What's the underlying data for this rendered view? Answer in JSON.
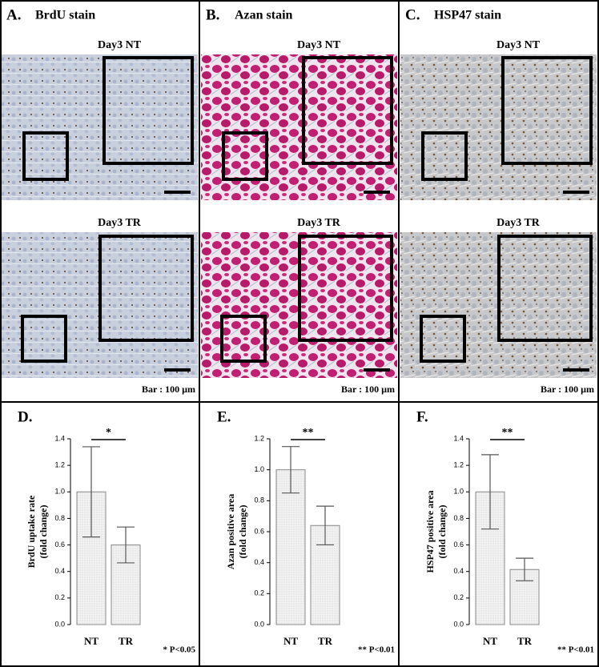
{
  "panels": [
    {
      "label": "A.",
      "title": "BrdU stain",
      "images": [
        "Day3 NT",
        "Day3 TR"
      ],
      "scale": "Bar : 100 µm"
    },
    {
      "label": "B.",
      "title": "Azan stain",
      "images": [
        "Day3 NT",
        "Day3 TR"
      ],
      "scale": "Bar : 100 µm"
    },
    {
      "label": "C.",
      "title": "HSP47 stain",
      "images": [
        "Day3 NT",
        "Day3 TR"
      ],
      "scale": "Bar : 100 µm"
    }
  ],
  "chart_data": [
    {
      "type": "bar",
      "panel": "D.",
      "ylabel": [
        "BrdU uptake rate",
        "(fold change)"
      ],
      "categories": [
        "NT",
        "TR"
      ],
      "values": [
        1.0,
        0.6
      ],
      "errors": [
        0.34,
        0.135
      ],
      "color": "#eeeeee",
      "ylim": [
        0,
        1.4
      ],
      "yticks": [
        {
          "value": 0,
          "label": "0.0"
        },
        0.2,
        0.4,
        0.6,
        0.8,
        {
          "value": 1,
          "label": "1.0"
        },
        1.2,
        1.4
      ],
      "significance": "*",
      "footnote": "* P<0.05"
    },
    {
      "type": "bar",
      "panel": "E.",
      "ylabel": [
        "Azan positive area",
        "(fold change)"
      ],
      "categories": [
        "NT",
        "TR"
      ],
      "values": [
        1.0,
        0.64
      ],
      "errors": [
        0.15,
        0.125
      ],
      "color": "#eeeeee",
      "ylim": [
        0,
        1.2
      ],
      "yticks": [
        {
          "value": 0,
          "label": "0.0"
        },
        0.2,
        0.4,
        0.6,
        0.8,
        {
          "value": 1,
          "label": "1.0"
        },
        1.2
      ],
      "significance": "**",
      "footnote": "** P<0.01"
    },
    {
      "type": "bar",
      "panel": "F.",
      "ylabel": [
        "HSP47 positive area",
        "(fold change)"
      ],
      "categories": [
        "NT",
        "TR"
      ],
      "values": [
        1.0,
        0.415
      ],
      "errors": [
        0.28,
        0.085
      ],
      "color": "#eeeeee",
      "ylim": [
        0,
        1.4
      ],
      "yticks": [
        {
          "value": 0,
          "label": "0.0"
        },
        0.2,
        0.4,
        0.6,
        0.8,
        {
          "value": 1,
          "label": "1.0"
        },
        1.2,
        1.4
      ],
      "significance": "**",
      "footnote": "** P<0.01"
    }
  ]
}
